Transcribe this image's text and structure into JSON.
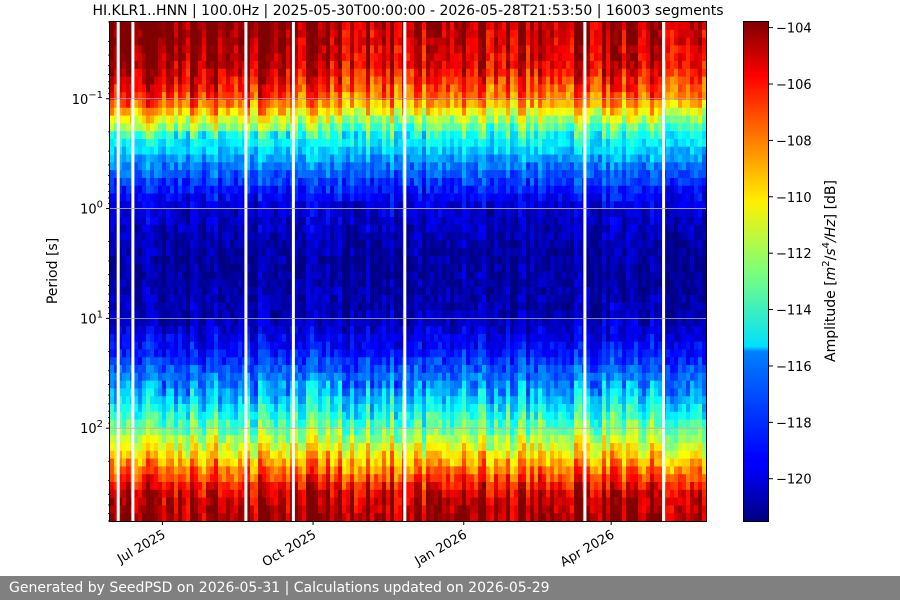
{
  "chart_data": {
    "type": "heatmap",
    "title": "HI.KLR1..HNN | 100.0Hz | 2025-05-30T00:00:00 - 2026-05-28T21:53:50 | 16003 segments",
    "xlabel": "",
    "ylabel": "Period [s]",
    "x_range": [
      "2025-05-30T00:00:00",
      "2026-05-28T21:53:50"
    ],
    "x_ticks": [
      {
        "date": "2025-07-01",
        "label": "Jul 2025"
      },
      {
        "date": "2025-10-01",
        "label": "Oct 2025"
      },
      {
        "date": "2026-01-01",
        "label": "Jan 2026"
      },
      {
        "date": "2026-04-01",
        "label": "Apr 2026"
      }
    ],
    "y_scale": "log",
    "y_inverted": true,
    "y_range": [
      0.02,
      700
    ],
    "y_ticks": [
      {
        "value": 0.1,
        "base": "10",
        "exp": "−1"
      },
      {
        "value": 1,
        "base": "10",
        "exp": "0"
      },
      {
        "value": 10,
        "base": "10",
        "exp": "1"
      },
      {
        "value": 100,
        "base": "10",
        "exp": "2"
      }
    ],
    "grid": true,
    "colorbar": {
      "label_pre": "Amplitude [",
      "label_m": "m",
      "label_exp1": "2",
      "label_mid": "/",
      "label_s": "s",
      "label_exp2": "4",
      "label_hz": "/Hz",
      "label_post": "] [dB]",
      "colormap": "jet",
      "range": [
        -121.5,
        -103.8
      ],
      "ticks": [
        {
          "value": -104,
          "label": "−104"
        },
        {
          "value": -106,
          "label": "−106"
        },
        {
          "value": -108,
          "label": "−108"
        },
        {
          "value": -110,
          "label": "−110"
        },
        {
          "value": -112,
          "label": "−112"
        },
        {
          "value": -114,
          "label": "−114"
        },
        {
          "value": -116,
          "label": "−116"
        },
        {
          "value": -118,
          "label": "−118"
        },
        {
          "value": -120,
          "label": "−120"
        }
      ]
    },
    "amplitude_profile": [
      {
        "period": 0.02,
        "db": -104.5
      },
      {
        "period": 0.05,
        "db": -105.5
      },
      {
        "period": 0.1,
        "db": -108
      },
      {
        "period": 0.2,
        "db": -114
      },
      {
        "period": 0.4,
        "db": -117
      },
      {
        "period": 0.7,
        "db": -119
      },
      {
        "period": 1,
        "db": -120
      },
      {
        "period": 3,
        "db": -121
      },
      {
        "period": 10,
        "db": -120.5
      },
      {
        "period": 20,
        "db": -119
      },
      {
        "period": 50,
        "db": -116
      },
      {
        "period": 100,
        "db": -113
      },
      {
        "period": 200,
        "db": -109
      },
      {
        "period": 400,
        "db": -105
      },
      {
        "period": 700,
        "db": -104
      }
    ],
    "data_gaps": [
      "2025-06-04",
      "2025-06-13",
      "2025-08-21",
      "2025-09-19",
      "2025-11-26",
      "2026-03-16",
      "2026-05-03"
    ]
  },
  "footer": {
    "text": "Generated by SeedPSD on 2026-05-31 | Calculations updated on 2026-05-29"
  }
}
